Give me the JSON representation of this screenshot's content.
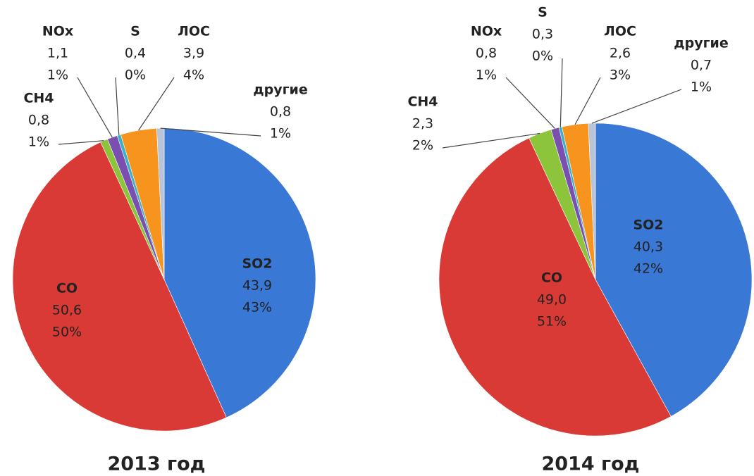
{
  "chart_data": [
    {
      "type": "pie",
      "title": "2013 год",
      "categories": [
        "SO2",
        "CO",
        "CH4",
        "NOx",
        "S",
        "ЛОС",
        "другие"
      ],
      "values": [
        43.9,
        50.6,
        0.8,
        1.1,
        0.4,
        3.9,
        0.8
      ],
      "value_labels": [
        "43,9",
        "50,6",
        "0,8",
        "1,1",
        "0,4",
        "3,9",
        "0,8"
      ],
      "percent_labels": [
        "43%",
        "50%",
        "1%",
        "1%",
        "0%",
        "4%",
        "1%"
      ],
      "colors": [
        "#3a78d6",
        "#d93a35",
        "#8cc43c",
        "#7a4fb0",
        "#3cb0c8",
        "#f7941d",
        "#b8c4d8"
      ]
    },
    {
      "type": "pie",
      "title": "2014 год",
      "categories": [
        "SO2",
        "CO",
        "CH4",
        "NOx",
        "S",
        "ЛОС",
        "другие"
      ],
      "values": [
        40.3,
        49.0,
        2.3,
        0.8,
        0.3,
        2.6,
        0.7
      ],
      "value_labels": [
        "40,3",
        "49,0",
        "2,3",
        "0,8",
        "0,3",
        "2,6",
        "0,7"
      ],
      "percent_labels": [
        "42%",
        "51%",
        "2%",
        "1%",
        "0%",
        "3%",
        "1%"
      ],
      "colors": [
        "#3a78d6",
        "#d93a35",
        "#8cc43c",
        "#7a4fb0",
        "#3cb0c8",
        "#f7941d",
        "#b8c4d8"
      ]
    }
  ]
}
